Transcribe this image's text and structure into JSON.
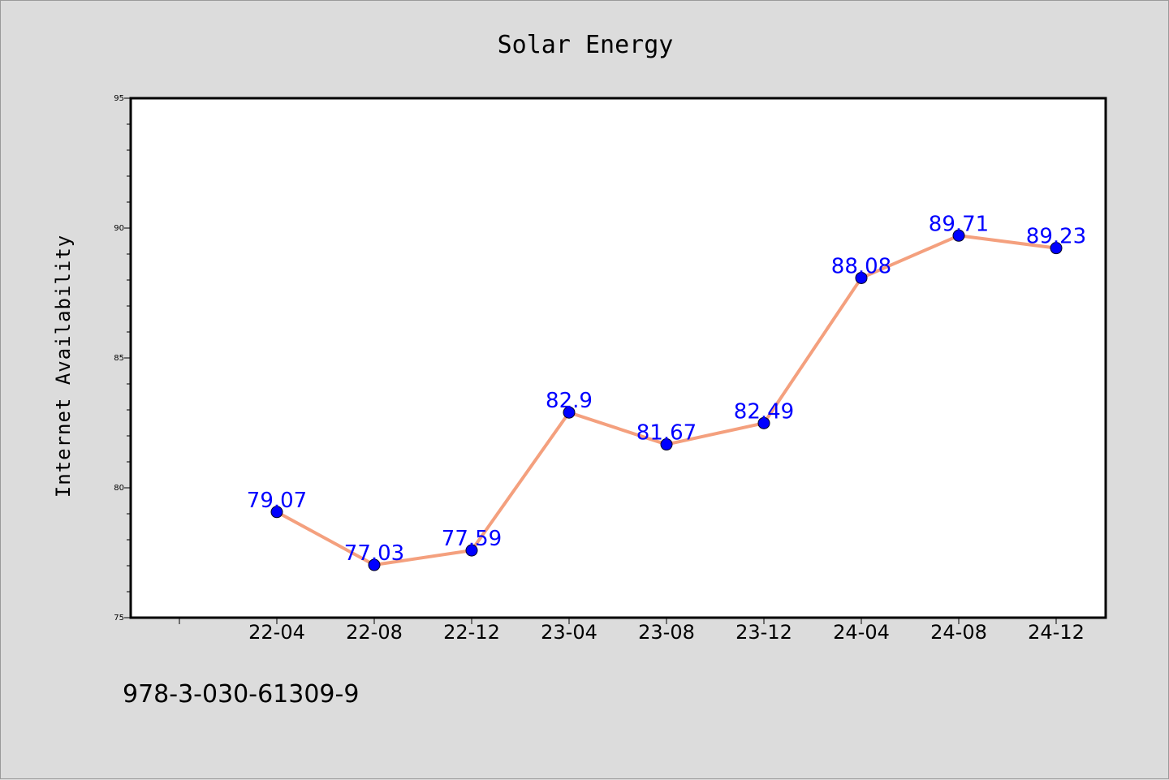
{
  "chart_data": {
    "type": "line",
    "title": "Solar Energy",
    "xlabel": "",
    "ylabel": "Internet Availability",
    "categories": [
      "22-04",
      "22-08",
      "22-12",
      "23-04",
      "23-08",
      "23-12",
      "24-04",
      "24-08",
      "24-12"
    ],
    "values": [
      79.07,
      77.03,
      77.59,
      82.9,
      81.67,
      82.49,
      88.08,
      89.71,
      89.23
    ],
    "data_labels": [
      "79.07",
      "77.03",
      "77.59",
      "82.9",
      "81.67",
      "82.49",
      "88.08",
      "89.71",
      "89.23"
    ],
    "ylim": [
      75,
      95
    ],
    "yticks": [
      75,
      80,
      85,
      90,
      95
    ],
    "ytick_labels": [
      "75",
      "80",
      "85",
      "90",
      "95"
    ],
    "grid": false,
    "legend": "none",
    "colors": {
      "line": "#f4a07e",
      "marker": "#0000ff",
      "data_label": "#0000ff",
      "plot_background": "#ffffff",
      "page_background": "#dcdcdc"
    }
  },
  "footer": {
    "isbn": "978-3-030-61309-9"
  }
}
